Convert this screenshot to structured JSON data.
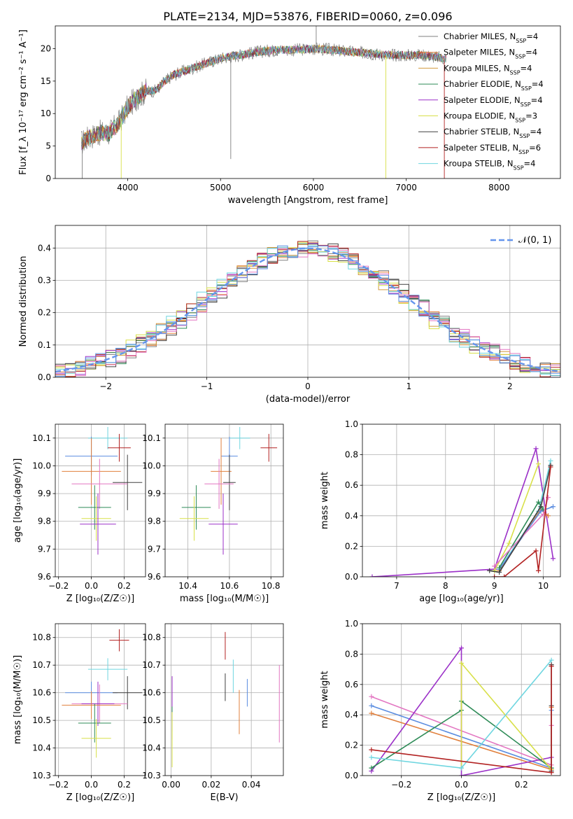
{
  "title": "PLATE=2134, MJD=53876, FIBERID=0060, z=0.096",
  "colors": {
    "c_miles": "#7f7f7f",
    "s_miles": "#e1803d",
    "k_miles": "#d39a3e",
    "c_elodie": "#2e8b57",
    "s_elodie": "#9b30c8",
    "k_elodie": "#d8e048",
    "c_stelib": "#404040",
    "s_stelib": "#b22222",
    "k_stelib": "#6fd6e0",
    "gauss": "#6495ed",
    "pink": "#e377c2",
    "blue": "#5b8de0",
    "olive": "#5f8f5f"
  },
  "chart_data": [
    {
      "id": "spectrum",
      "type": "line",
      "xlabel": "wavelength [Angstrom, rest frame]",
      "ylabel": "Flux [f_λ 10⁻¹⁷ erg cm⁻² s⁻¹ A⁻¹]",
      "xlim": [
        3220,
        8660
      ],
      "ylim": [
        0,
        23.5
      ],
      "xticks": [
        4000,
        5000,
        6000,
        7000,
        8000
      ],
      "yticks": [
        0,
        5,
        10,
        15,
        20
      ],
      "grid": false,
      "legend_position": "top-right",
      "legend": [
        {
          "label": "Chabrier MILES, N",
          "sub": "SSP",
          "tail": "=4",
          "color": "c_miles"
        },
        {
          "label": "Salpeter MILES, N",
          "sub": "SSP",
          "tail": "=4",
          "color": "s_miles"
        },
        {
          "label": "Kroupa MILES, N",
          "sub": "SSP",
          "tail": "=4",
          "color": "k_miles"
        },
        {
          "label": "Chabrier ELODIE, N",
          "sub": "SSP",
          "tail": "=4",
          "color": "c_elodie"
        },
        {
          "label": "Salpeter ELODIE, N",
          "sub": "SSP",
          "tail": "=4",
          "color": "s_elodie"
        },
        {
          "label": "Kroupa ELODIE, N",
          "sub": "SSP",
          "tail": "=3",
          "color": "k_elodie"
        },
        {
          "label": "Chabrier STELIB, N",
          "sub": "SSP",
          "tail": "=4",
          "color": "c_stelib"
        },
        {
          "label": "Salpeter STELIB, N",
          "sub": "SSP",
          "tail": "=6",
          "color": "s_stelib"
        },
        {
          "label": "Kroupa STELIB, N",
          "sub": "SSP",
          "tail": "=4",
          "color": "k_stelib"
        }
      ],
      "continuum": {
        "wavelength": [
          3500,
          3600,
          3700,
          3800,
          3900,
          4000,
          4100,
          4200,
          4300,
          4400,
          4500,
          4600,
          4700,
          4800,
          4900,
          5000,
          5200,
          5400,
          5600,
          5800,
          6000,
          6200,
          6400,
          6600,
          6800,
          7000,
          7200,
          7400
        ],
        "flux": [
          5.5,
          6.5,
          7.0,
          7.0,
          8.5,
          11.0,
          12.5,
          13.5,
          13.5,
          15.0,
          16.0,
          16.5,
          17.0,
          17.5,
          18.0,
          18.5,
          19.0,
          19.5,
          19.8,
          19.8,
          20.0,
          19.8,
          19.5,
          19.3,
          19.0,
          19.0,
          19.0,
          18.5
        ]
      },
      "spikes": [
        {
          "wavelength": 3510,
          "flux": 0,
          "color": "c_miles"
        },
        {
          "wavelength": 3930,
          "flux": 0,
          "color": "k_elodie"
        },
        {
          "wavelength": 5110,
          "flux": 3.0,
          "color": "c_miles"
        },
        {
          "wavelength": 6030,
          "flux": 23.5,
          "color": "c_miles"
        },
        {
          "wavelength": 6780,
          "flux": 0,
          "color": "k_elodie"
        },
        {
          "wavelength": 7410,
          "flux": 0,
          "color": "s_stelib"
        }
      ]
    },
    {
      "id": "residuals",
      "type": "histogram",
      "xlabel": "(data-model)/error",
      "ylabel": "Normed distribution",
      "xlim": [
        -2.5,
        2.5
      ],
      "ylim": [
        0,
        0.47
      ],
      "xticks": [
        -2,
        -1,
        0,
        1,
        2
      ],
      "yticks": [
        0.0,
        0.1,
        0.2,
        0.3,
        0.4
      ],
      "grid": true,
      "legend_position": "top-right",
      "legend_label": "𝒩(0, 1)",
      "gaussian": {
        "mu": 0,
        "sigma": 1,
        "color": "gauss"
      },
      "bin_width": 0.1,
      "series_colors": [
        "c_miles",
        "s_miles",
        "k_miles",
        "c_elodie",
        "s_elodie",
        "k_elodie",
        "c_stelib",
        "s_stelib",
        "k_stelib",
        "pink",
        "blue"
      ]
    },
    {
      "id": "age-z",
      "type": "scatter",
      "xlabel": "Z [log₁₀(Z/Z☉)]",
      "ylabel": "age  [log₁₀(age/yr)]",
      "xlim": [
        -0.22,
        0.33
      ],
      "ylim": [
        9.6,
        10.15
      ],
      "xticks": [
        -0.2,
        0.0,
        0.2
      ],
      "xticklabels": [
        "−0.2",
        "0.0",
        "0.2"
      ],
      "yticks": [
        9.6,
        9.7,
        9.8,
        9.9,
        10.0,
        10.1
      ],
      "grid": true,
      "points": [
        {
          "x": 0.1,
          "y": 10.1,
          "xerr": 0.12,
          "yerr": 0.04,
          "color": "k_stelib"
        },
        {
          "x": 0.17,
          "y": 10.065,
          "xerr": 0.07,
          "yerr": 0.05,
          "color": "s_stelib"
        },
        {
          "x": 0.0,
          "y": 10.035,
          "xerr": 0.16,
          "yerr": 0.07,
          "color": "blue"
        },
        {
          "x": 0.0,
          "y": 9.98,
          "xerr": 0.18,
          "yerr": 0.12,
          "color": "s_miles"
        },
        {
          "x": 0.22,
          "y": 9.94,
          "xerr": 0.09,
          "yerr": 0.1,
          "color": "c_stelib"
        },
        {
          "x": 0.05,
          "y": 9.935,
          "xerr": 0.17,
          "yerr": 0.09,
          "color": "pink"
        },
        {
          "x": 0.02,
          "y": 9.85,
          "xerr": 0.1,
          "yerr": 0.08,
          "color": "c_elodie"
        },
        {
          "x": 0.03,
          "y": 9.81,
          "xerr": 0.09,
          "yerr": 0.08,
          "color": "k_elodie"
        },
        {
          "x": 0.04,
          "y": 9.79,
          "xerr": 0.11,
          "yerr": 0.11,
          "color": "s_elodie"
        }
      ]
    },
    {
      "id": "age-mass",
      "type": "scatter",
      "xlabel": "mass [log₁₀(M/M☉)]",
      "ylabel": "",
      "xlim": [
        10.29,
        10.86
      ],
      "ylim": [
        9.6,
        10.15
      ],
      "xticks": [
        10.4,
        10.6,
        10.8
      ],
      "yticks": [
        9.6,
        9.7,
        9.8,
        9.9,
        10.0,
        10.1
      ],
      "grid": true,
      "points": [
        {
          "x": 10.65,
          "y": 10.1,
          "xerr": 0.05,
          "yerr": 0.04,
          "color": "k_stelib"
        },
        {
          "x": 10.79,
          "y": 10.065,
          "xerr": 0.04,
          "yerr": 0.05,
          "color": "s_stelib"
        },
        {
          "x": 10.6,
          "y": 10.035,
          "xerr": 0.04,
          "yerr": 0.07,
          "color": "blue"
        },
        {
          "x": 10.56,
          "y": 9.98,
          "xerr": 0.05,
          "yerr": 0.12,
          "color": "s_miles"
        },
        {
          "x": 10.6,
          "y": 9.94,
          "xerr": 0.03,
          "yerr": 0.1,
          "color": "c_stelib"
        },
        {
          "x": 10.55,
          "y": 9.935,
          "xerr": 0.07,
          "yerr": 0.09,
          "color": "pink"
        },
        {
          "x": 10.44,
          "y": 9.85,
          "xerr": 0.07,
          "yerr": 0.08,
          "color": "c_elodie"
        },
        {
          "x": 10.43,
          "y": 9.81,
          "xerr": 0.07,
          "yerr": 0.08,
          "color": "k_elodie"
        },
        {
          "x": 10.57,
          "y": 9.79,
          "xerr": 0.07,
          "yerr": 0.11,
          "color": "s_elodie"
        }
      ]
    },
    {
      "id": "weight-age",
      "type": "line",
      "xlabel": "age  [log₁₀(age/yr)]",
      "ylabel": "mass weight",
      "xlim": [
        6.3,
        10.35
      ],
      "ylim": [
        0,
        1.0
      ],
      "xticks": [
        7,
        8,
        9,
        10
      ],
      "yticks": [
        0.0,
        0.2,
        0.4,
        0.6,
        0.8,
        1.0
      ],
      "grid": true,
      "series": [
        {
          "color": "s_elodie",
          "x": [
            6.5,
            9.0,
            9.85,
            10.2
          ],
          "y": [
            0.0,
            0.05,
            0.84,
            0.12
          ]
        },
        {
          "color": "k_elodie",
          "x": [
            9.0,
            9.3,
            9.9
          ],
          "y": [
            0.04,
            0.22,
            0.74
          ]
        },
        {
          "color": "k_stelib",
          "x": [
            9.1,
            9.9,
            10.15
          ],
          "y": [
            0.05,
            0.43,
            0.76
          ]
        },
        {
          "color": "s_miles",
          "x": [
            9.1,
            9.95,
            10.1
          ],
          "y": [
            0.04,
            0.44,
            0.4
          ]
        },
        {
          "color": "blue",
          "x": [
            9.1,
            9.95,
            10.2
          ],
          "y": [
            0.05,
            0.43,
            0.46
          ]
        },
        {
          "color": "c_elodie",
          "x": [
            9.1,
            9.9,
            10.0
          ],
          "y": [
            0.06,
            0.49,
            0.44
          ]
        },
        {
          "color": "pink",
          "x": [
            9.0,
            10.0,
            10.1
          ],
          "y": [
            0.07,
            0.41,
            0.52
          ]
        },
        {
          "color": "c_stelib",
          "x": [
            8.9,
            9.1,
            9.95,
            10.15
          ],
          "y": [
            0.04,
            0.03,
            0.46,
            0.73
          ]
        },
        {
          "color": "s_stelib",
          "x": [
            9.0,
            9.2,
            9.85,
            9.9,
            10.15
          ],
          "y": [
            0.0,
            0.0,
            0.17,
            0.04,
            0.72
          ]
        }
      ]
    },
    {
      "id": "mass-z",
      "type": "scatter",
      "xlabel": "Z [log₁₀(Z/Z☉)]",
      "ylabel": "mass [log₁₀(M/M☉)]",
      "xlim": [
        -0.22,
        0.33
      ],
      "ylim": [
        10.3,
        10.85
      ],
      "xticks": [
        -0.2,
        0.0,
        0.2
      ],
      "xticklabels": [
        "−0.2",
        "0.0",
        "0.2"
      ],
      "yticks": [
        10.3,
        10.4,
        10.5,
        10.6,
        10.7,
        10.8
      ],
      "grid": true,
      "points": [
        {
          "x": 0.17,
          "y": 10.79,
          "xerr": 0.06,
          "yerr": 0.04,
          "color": "s_stelib"
        },
        {
          "x": 0.1,
          "y": 10.685,
          "xerr": 0.12,
          "yerr": 0.04,
          "color": "k_stelib"
        },
        {
          "x": 0.0,
          "y": 10.6,
          "xerr": 0.16,
          "yerr": 0.04,
          "color": "blue"
        },
        {
          "x": 0.22,
          "y": 10.6,
          "xerr": 0.09,
          "yerr": 0.06,
          "color": "c_stelib"
        },
        {
          "x": 0.05,
          "y": 10.56,
          "xerr": 0.17,
          "yerr": 0.07,
          "color": "pink"
        },
        {
          "x": 0.04,
          "y": 10.56,
          "xerr": 0.1,
          "yerr": 0.08,
          "color": "s_elodie"
        },
        {
          "x": 0.0,
          "y": 10.555,
          "xerr": 0.18,
          "yerr": 0.05,
          "color": "s_miles"
        },
        {
          "x": 0.02,
          "y": 10.49,
          "xerr": 0.1,
          "yerr": 0.07,
          "color": "c_elodie"
        },
        {
          "x": 0.03,
          "y": 10.435,
          "xerr": 0.09,
          "yerr": 0.07,
          "color": "k_elodie"
        }
      ]
    },
    {
      "id": "mass-ebv",
      "type": "scatter",
      "xlabel": "E(B-V)",
      "ylabel": "",
      "xlim": [
        -0.003,
        0.056
      ],
      "ylim": [
        10.3,
        10.85
      ],
      "xticks": [
        0.0,
        0.02,
        0.04
      ],
      "xticklabels": [
        "0.00",
        "0.02",
        "0.04"
      ],
      "yticks": [
        10.3,
        10.4,
        10.5,
        10.6,
        10.7,
        10.8
      ],
      "grid": true,
      "points": [
        {
          "x": 0.027,
          "y": 10.77,
          "xerr": 0,
          "yerr": 0.05,
          "color": "s_stelib"
        },
        {
          "x": 0.031,
          "y": 10.66,
          "xerr": 0,
          "yerr": 0.06,
          "color": "k_stelib"
        },
        {
          "x": 0.038,
          "y": 10.6,
          "xerr": 0,
          "yerr": 0.05,
          "color": "blue"
        },
        {
          "x": 0.027,
          "y": 10.62,
          "xerr": 0,
          "yerr": 0.05,
          "color": "c_stelib"
        },
        {
          "x": 0.054,
          "y": 10.56,
          "xerr": 0,
          "yerr": 0.14,
          "color": "pink"
        },
        {
          "x": 0.0005,
          "y": 10.56,
          "xerr": 0,
          "yerr": 0.1,
          "color": "s_elodie"
        },
        {
          "x": 0.034,
          "y": 10.53,
          "xerr": 0,
          "yerr": 0.08,
          "color": "s_miles"
        },
        {
          "x": 0.0005,
          "y": 10.49,
          "xerr": 0,
          "yerr": 0.06,
          "color": "c_elodie"
        },
        {
          "x": 0.0005,
          "y": 10.43,
          "xerr": 0,
          "yerr": 0.1,
          "color": "k_elodie"
        }
      ]
    },
    {
      "id": "weight-z",
      "type": "line",
      "xlabel": "Z [log₁₀(Z/Z☉)]",
      "ylabel": "mass weight",
      "xlim": [
        -0.33,
        0.33
      ],
      "ylim": [
        0,
        1.0
      ],
      "xticks": [
        -0.2,
        0.0,
        0.2
      ],
      "xticklabels": [
        "−0.2",
        "0.0",
        "0.2"
      ],
      "yticks": [
        0.0,
        0.2,
        0.4,
        0.6,
        0.8,
        1.0
      ],
      "grid": true,
      "series": [
        {
          "color": "pink",
          "x": [
            -0.3,
            0.3,
            0.3
          ],
          "y": [
            0.52,
            0.07,
            0.33
          ]
        },
        {
          "color": "blue",
          "x": [
            -0.3,
            0.3,
            0.3
          ],
          "y": [
            0.46,
            0.05,
            0.43
          ]
        },
        {
          "color": "s_miles",
          "x": [
            -0.3,
            0.3,
            0.3
          ],
          "y": [
            0.41,
            0.04,
            0.45
          ]
        },
        {
          "color": "s_elodie",
          "x": [
            -0.3,
            0.0,
            0.0,
            0.3
          ],
          "y": [
            0.03,
            0.84,
            0.0,
            0.12
          ]
        },
        {
          "color": "c_elodie",
          "x": [
            -0.3,
            0.0,
            0.0,
            0.3
          ],
          "y": [
            0.05,
            0.43,
            0.49,
            0.05
          ]
        },
        {
          "color": "k_elodie",
          "x": [
            0.0,
            0.0,
            0.3
          ],
          "y": [
            0.05,
            0.74,
            0.04
          ]
        },
        {
          "color": "k_stelib",
          "x": [
            -0.3,
            0.0,
            0.3
          ],
          "y": [
            0.12,
            0.05,
            0.76
          ]
        },
        {
          "color": "c_stelib",
          "x": [
            0.3,
            0.3,
            0.3
          ],
          "y": [
            0.03,
            0.73,
            0.46
          ]
        },
        {
          "color": "s_stelib",
          "x": [
            -0.3,
            0.3,
            0.3
          ],
          "y": [
            0.17,
            0.02,
            0.72
          ]
        }
      ]
    }
  ]
}
